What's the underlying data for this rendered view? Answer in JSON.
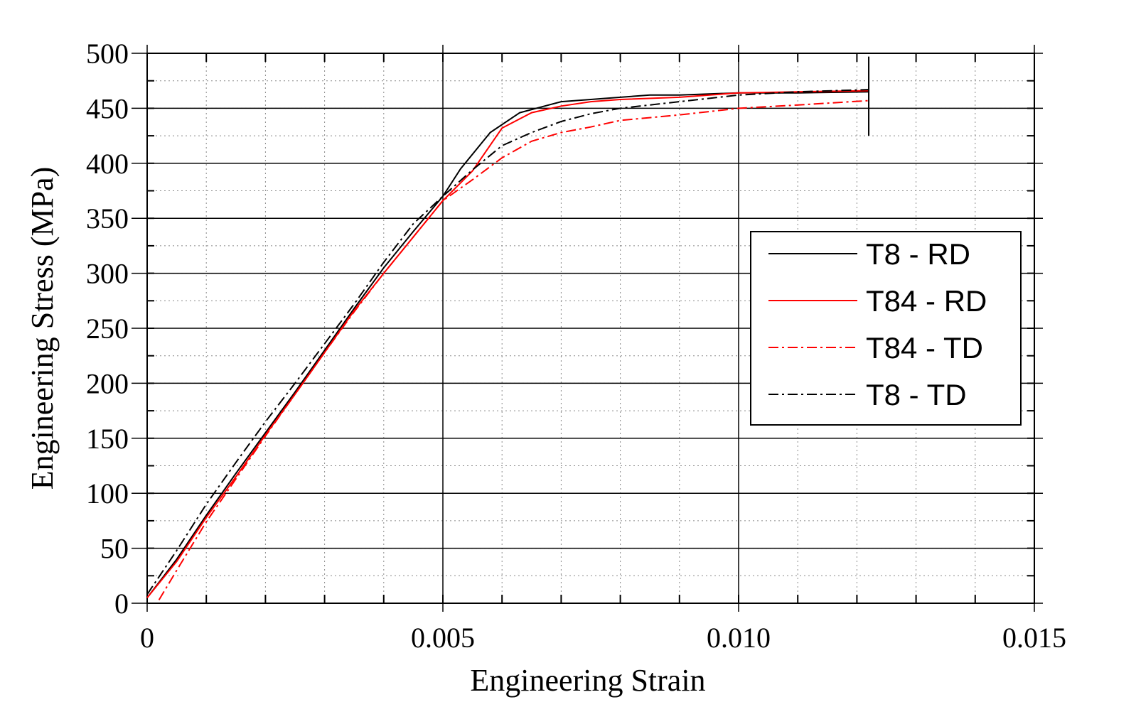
{
  "chart_data": {
    "type": "line",
    "xlabel": "Engineering Strain",
    "ylabel": "Engineering Stress (MPa)",
    "xlim": [
      0,
      0.015
    ],
    "ylim": [
      0,
      500
    ],
    "x_ticks": [
      0,
      0.005,
      0.01,
      0.015
    ],
    "x_tick_labels": [
      "0",
      "0.005",
      "0.010",
      "0.015"
    ],
    "y_ticks": [
      0,
      50,
      100,
      150,
      200,
      250,
      300,
      350,
      400,
      450,
      500
    ],
    "y_tick_labels": [
      "0",
      "50",
      "100",
      "150",
      "200",
      "250",
      "300",
      "350",
      "400",
      "450",
      "500"
    ],
    "grid": true,
    "legend_position": "center-right",
    "series": [
      {
        "name": "T8 - RD",
        "color": "#000000",
        "dash": "solid",
        "points": [
          [
            0,
            5
          ],
          [
            0.0005,
            40
          ],
          [
            0.001,
            80
          ],
          [
            0.0015,
            118
          ],
          [
            0.002,
            155
          ],
          [
            0.0025,
            192
          ],
          [
            0.003,
            230
          ],
          [
            0.0035,
            268
          ],
          [
            0.004,
            305
          ],
          [
            0.0045,
            338
          ],
          [
            0.005,
            370
          ],
          [
            0.0053,
            395
          ],
          [
            0.0058,
            428
          ],
          [
            0.0063,
            446
          ],
          [
            0.007,
            456
          ],
          [
            0.0075,
            458
          ],
          [
            0.008,
            460
          ],
          [
            0.0085,
            462
          ],
          [
            0.009,
            462
          ],
          [
            0.0095,
            463
          ],
          [
            0.01,
            464
          ],
          [
            0.011,
            464
          ],
          [
            0.0122,
            465
          ]
        ]
      },
      {
        "name": "T84 - RD",
        "color": "#ff0000",
        "dash": "solid",
        "points": [
          [
            0,
            5
          ],
          [
            0.0005,
            38
          ],
          [
            0.001,
            78
          ],
          [
            0.0015,
            115
          ],
          [
            0.002,
            153
          ],
          [
            0.0025,
            190
          ],
          [
            0.003,
            228
          ],
          [
            0.0035,
            266
          ],
          [
            0.004,
            300
          ],
          [
            0.0045,
            333
          ],
          [
            0.005,
            366
          ],
          [
            0.0055,
            393
          ],
          [
            0.006,
            432
          ],
          [
            0.0065,
            446
          ],
          [
            0.007,
            452
          ],
          [
            0.0075,
            456
          ],
          [
            0.008,
            458
          ],
          [
            0.009,
            460
          ],
          [
            0.01,
            464
          ],
          [
            0.011,
            465
          ],
          [
            0.0122,
            466
          ]
        ]
      },
      {
        "name": "T84 - TD",
        "color": "#ff0000",
        "dash": "dashdot",
        "points": [
          [
            0.0002,
            3
          ],
          [
            0.0005,
            30
          ],
          [
            0.001,
            74
          ],
          [
            0.0015,
            113
          ],
          [
            0.002,
            152
          ],
          [
            0.0025,
            190
          ],
          [
            0.003,
            228
          ],
          [
            0.0035,
            265
          ],
          [
            0.004,
            300
          ],
          [
            0.0045,
            333
          ],
          [
            0.005,
            366
          ],
          [
            0.0055,
            385
          ],
          [
            0.006,
            405
          ],
          [
            0.0065,
            420
          ],
          [
            0.007,
            428
          ],
          [
            0.0075,
            433
          ],
          [
            0.008,
            439
          ],
          [
            0.009,
            444
          ],
          [
            0.01,
            450
          ],
          [
            0.011,
            453
          ],
          [
            0.0122,
            457
          ]
        ]
      },
      {
        "name": "T8 - TD",
        "color": "#000000",
        "dash": "dashdot",
        "points": [
          [
            0,
            8
          ],
          [
            0.0005,
            48
          ],
          [
            0.001,
            90
          ],
          [
            0.0015,
            128
          ],
          [
            0.002,
            165
          ],
          [
            0.0025,
            200
          ],
          [
            0.003,
            236
          ],
          [
            0.0035,
            272
          ],
          [
            0.004,
            310
          ],
          [
            0.0045,
            345
          ],
          [
            0.005,
            370
          ],
          [
            0.0055,
            394
          ],
          [
            0.006,
            416
          ],
          [
            0.0065,
            428
          ],
          [
            0.007,
            438
          ],
          [
            0.0075,
            445
          ],
          [
            0.008,
            450
          ],
          [
            0.009,
            456
          ],
          [
            0.01,
            462
          ],
          [
            0.011,
            465
          ],
          [
            0.0122,
            467
          ]
        ]
      }
    ],
    "marker_line": {
      "x": 0.0122,
      "y_from": 425,
      "y_to": 497
    }
  }
}
